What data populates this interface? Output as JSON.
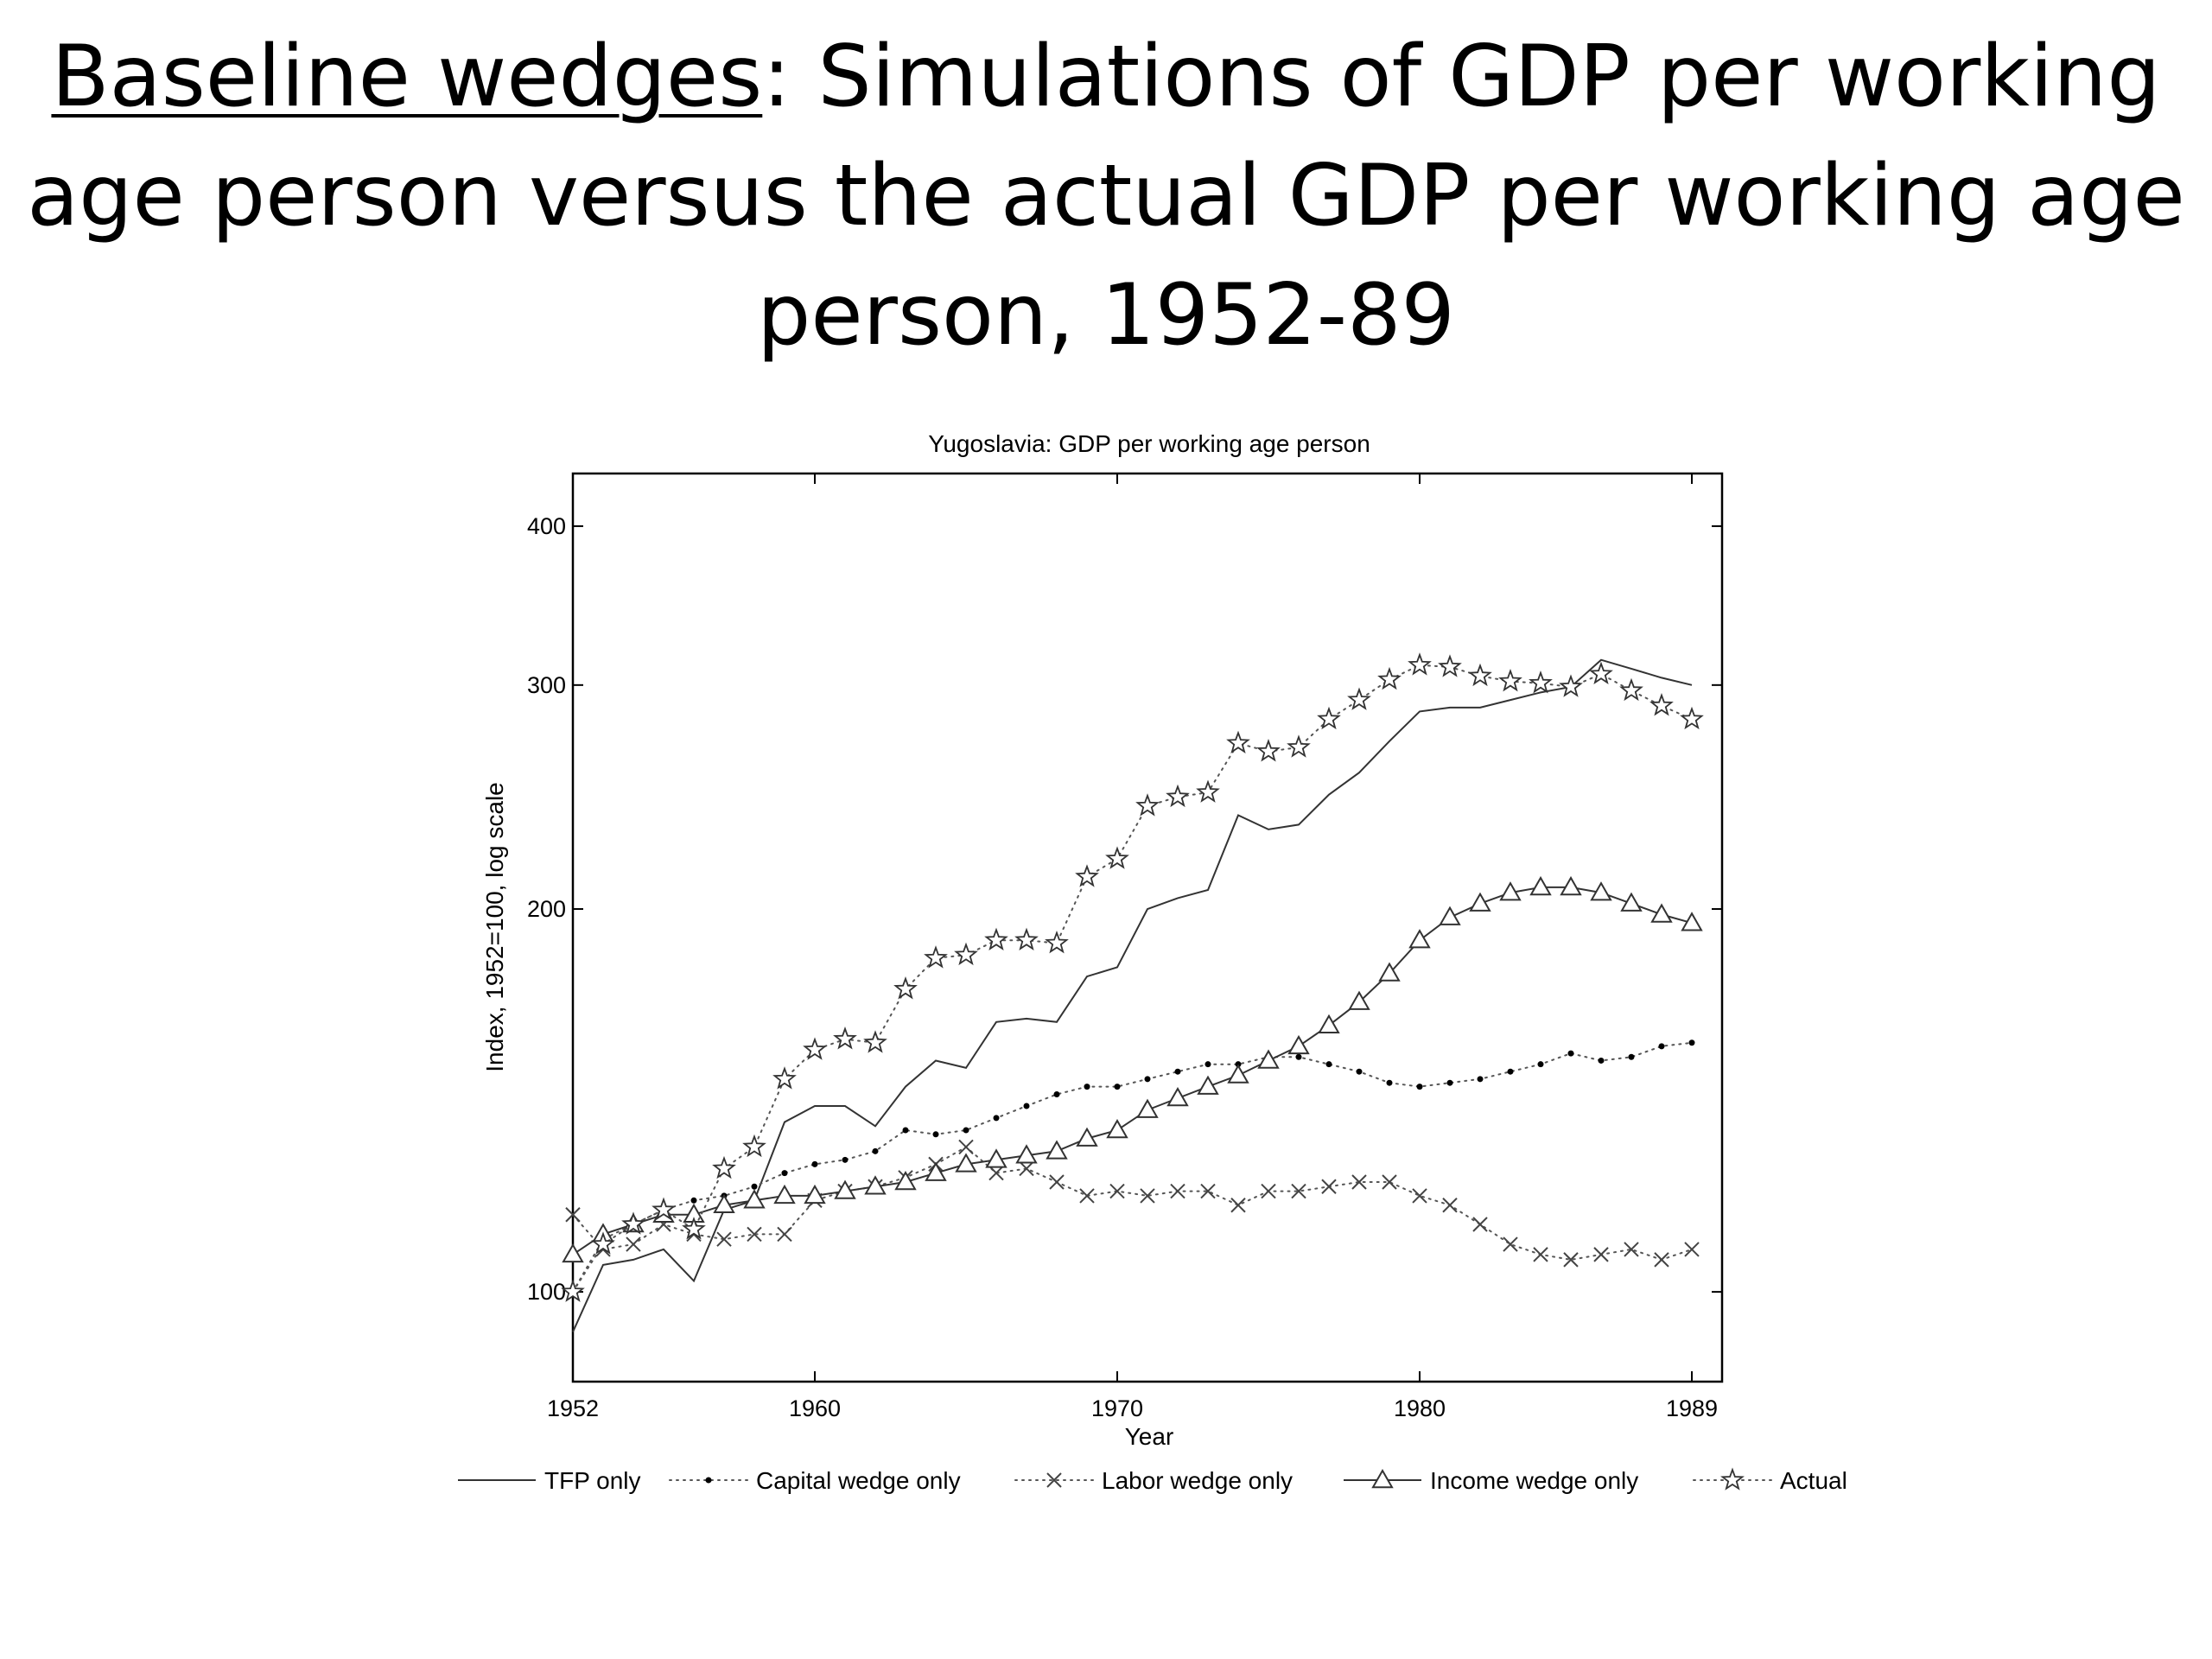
{
  "slide": {
    "title_underlined": "Baseline wedges",
    "title_rest": ": Simulations of GDP per working age person versus the actual GDP per working age person, 1952-89"
  },
  "chart_data": {
    "type": "line",
    "title": "Yugoslavia: GDP per working age person",
    "xlabel": "Year",
    "ylabel": "Index, 1952=100, log scale",
    "xlim": [
      1952,
      1989
    ],
    "ylim": [
      85,
      440
    ],
    "yscale": "log",
    "grid": false,
    "legend_position": "bottom",
    "xticks": [
      1952,
      1960,
      1970,
      1980,
      1989
    ],
    "yticks": [
      100,
      200,
      300,
      400
    ],
    "x": [
      1952,
      1953,
      1954,
      1955,
      1956,
      1957,
      1958,
      1959,
      1960,
      1961,
      1962,
      1963,
      1964,
      1965,
      1966,
      1967,
      1968,
      1969,
      1970,
      1971,
      1972,
      1973,
      1974,
      1975,
      1976,
      1977,
      1978,
      1979,
      1980,
      1981,
      1982,
      1983,
      1984,
      1985,
      1986,
      1987,
      1988,
      1989
    ],
    "series": [
      {
        "name": "TFP only",
        "style": "solid",
        "marker": "none",
        "values": [
          93,
          105,
          106,
          108,
          102,
          116,
          118,
          136,
          140,
          140,
          135,
          145,
          152,
          150,
          163,
          164,
          163,
          177,
          180,
          200,
          204,
          207,
          237,
          231,
          233,
          246,
          256,
          271,
          286,
          288,
          288,
          292,
          296,
          299,
          314,
          309,
          304,
          300
        ]
      },
      {
        "name": "Capital wedge only",
        "style": "dotted",
        "marker": "dot",
        "values": [
          100,
          110,
          113,
          116,
          118,
          119,
          121,
          124,
          126,
          127,
          129,
          134,
          133,
          134,
          137,
          140,
          143,
          145,
          145,
          147,
          149,
          151,
          151,
          153,
          153,
          151,
          149,
          146,
          145,
          146,
          147,
          149,
          151,
          154,
          152,
          153,
          156,
          157
        ]
      },
      {
        "name": "Labor wedge only",
        "style": "dotted",
        "marker": "x",
        "values": [
          115,
          108,
          109,
          113,
          111,
          110,
          111,
          111,
          118,
          120,
          121,
          123,
          126,
          130,
          124,
          125,
          122,
          119,
          120,
          119,
          120,
          120,
          117,
          120,
          120,
          121,
          122,
          122,
          119,
          117,
          113,
          109,
          107,
          106,
          107,
          108,
          106,
          108
        ]
      },
      {
        "name": "Income wedge only",
        "style": "solid",
        "marker": "triangle",
        "values": [
          107,
          111,
          113,
          115,
          115,
          117,
          118,
          119,
          119,
          120,
          121,
          122,
          124,
          126,
          127,
          128,
          129,
          132,
          134,
          139,
          142,
          145,
          148,
          152,
          156,
          162,
          169,
          178,
          189,
          197,
          202,
          206,
          208,
          208,
          206,
          202,
          198,
          195
        ]
      },
      {
        "name": "Actual",
        "style": "dotted",
        "marker": "star",
        "values": [
          100,
          109,
          113,
          116,
          112,
          125,
          130,
          147,
          155,
          158,
          157,
          173,
          183,
          184,
          189,
          189,
          188,
          212,
          219,
          241,
          245,
          247,
          270,
          266,
          268,
          282,
          292,
          303,
          311,
          310,
          305,
          302,
          301,
          299,
          306,
          297,
          289,
          282
        ]
      }
    ]
  }
}
